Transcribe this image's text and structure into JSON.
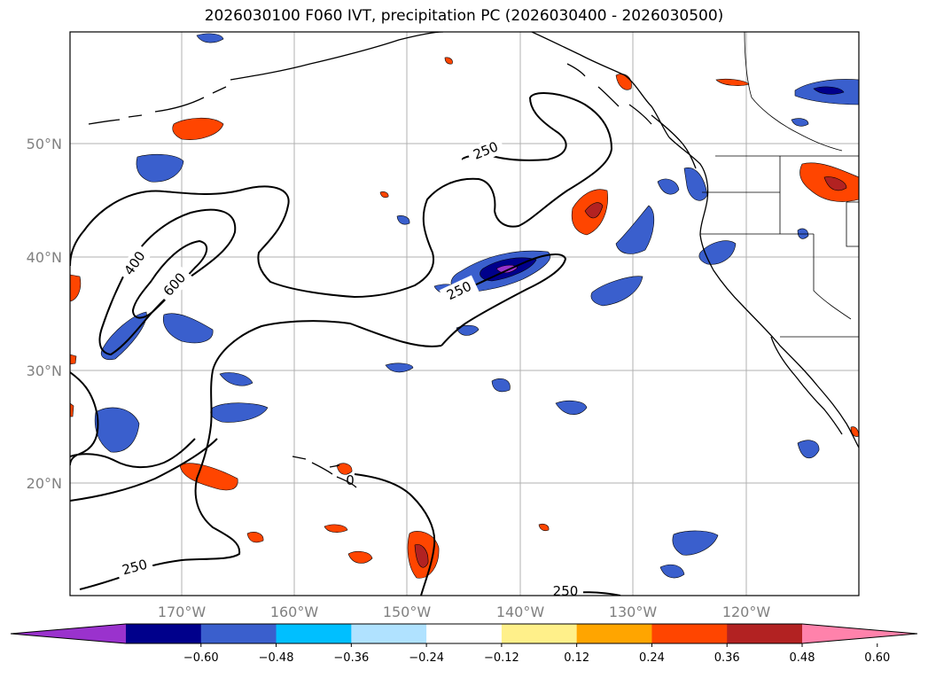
{
  "title": "2026030100 F060 IVT, precipitation PC (2026030400 - 2026030500)",
  "map": {
    "lon_ticks": [
      "170°W",
      "160°W",
      "150°W",
      "140°W",
      "130°W",
      "120°W"
    ],
    "lat_ticks": [
      "50°N",
      "40°N",
      "30°N",
      "20°N"
    ],
    "ivt_contour_labels": [
      "250",
      "250",
      "400",
      "600",
      "250",
      "250"
    ],
    "ivt_contour_levels": [
      250,
      400,
      600
    ],
    "coast_label_fragment": "0"
  },
  "colorbar": {
    "tick_labels": [
      "−0.60",
      "−0.48",
      "−0.36",
      "−0.24",
      "−0.12",
      "0.12",
      "0.24",
      "0.36",
      "0.48",
      "0.60"
    ],
    "colors": [
      "#9a32cd",
      "#00008b",
      "#3a5fcd",
      "#00bfff",
      "#b0e2ff",
      "#ffffff",
      "#fff08a",
      "#ffa500",
      "#ff4500",
      "#b22222",
      "#ff82ab"
    ]
  }
}
